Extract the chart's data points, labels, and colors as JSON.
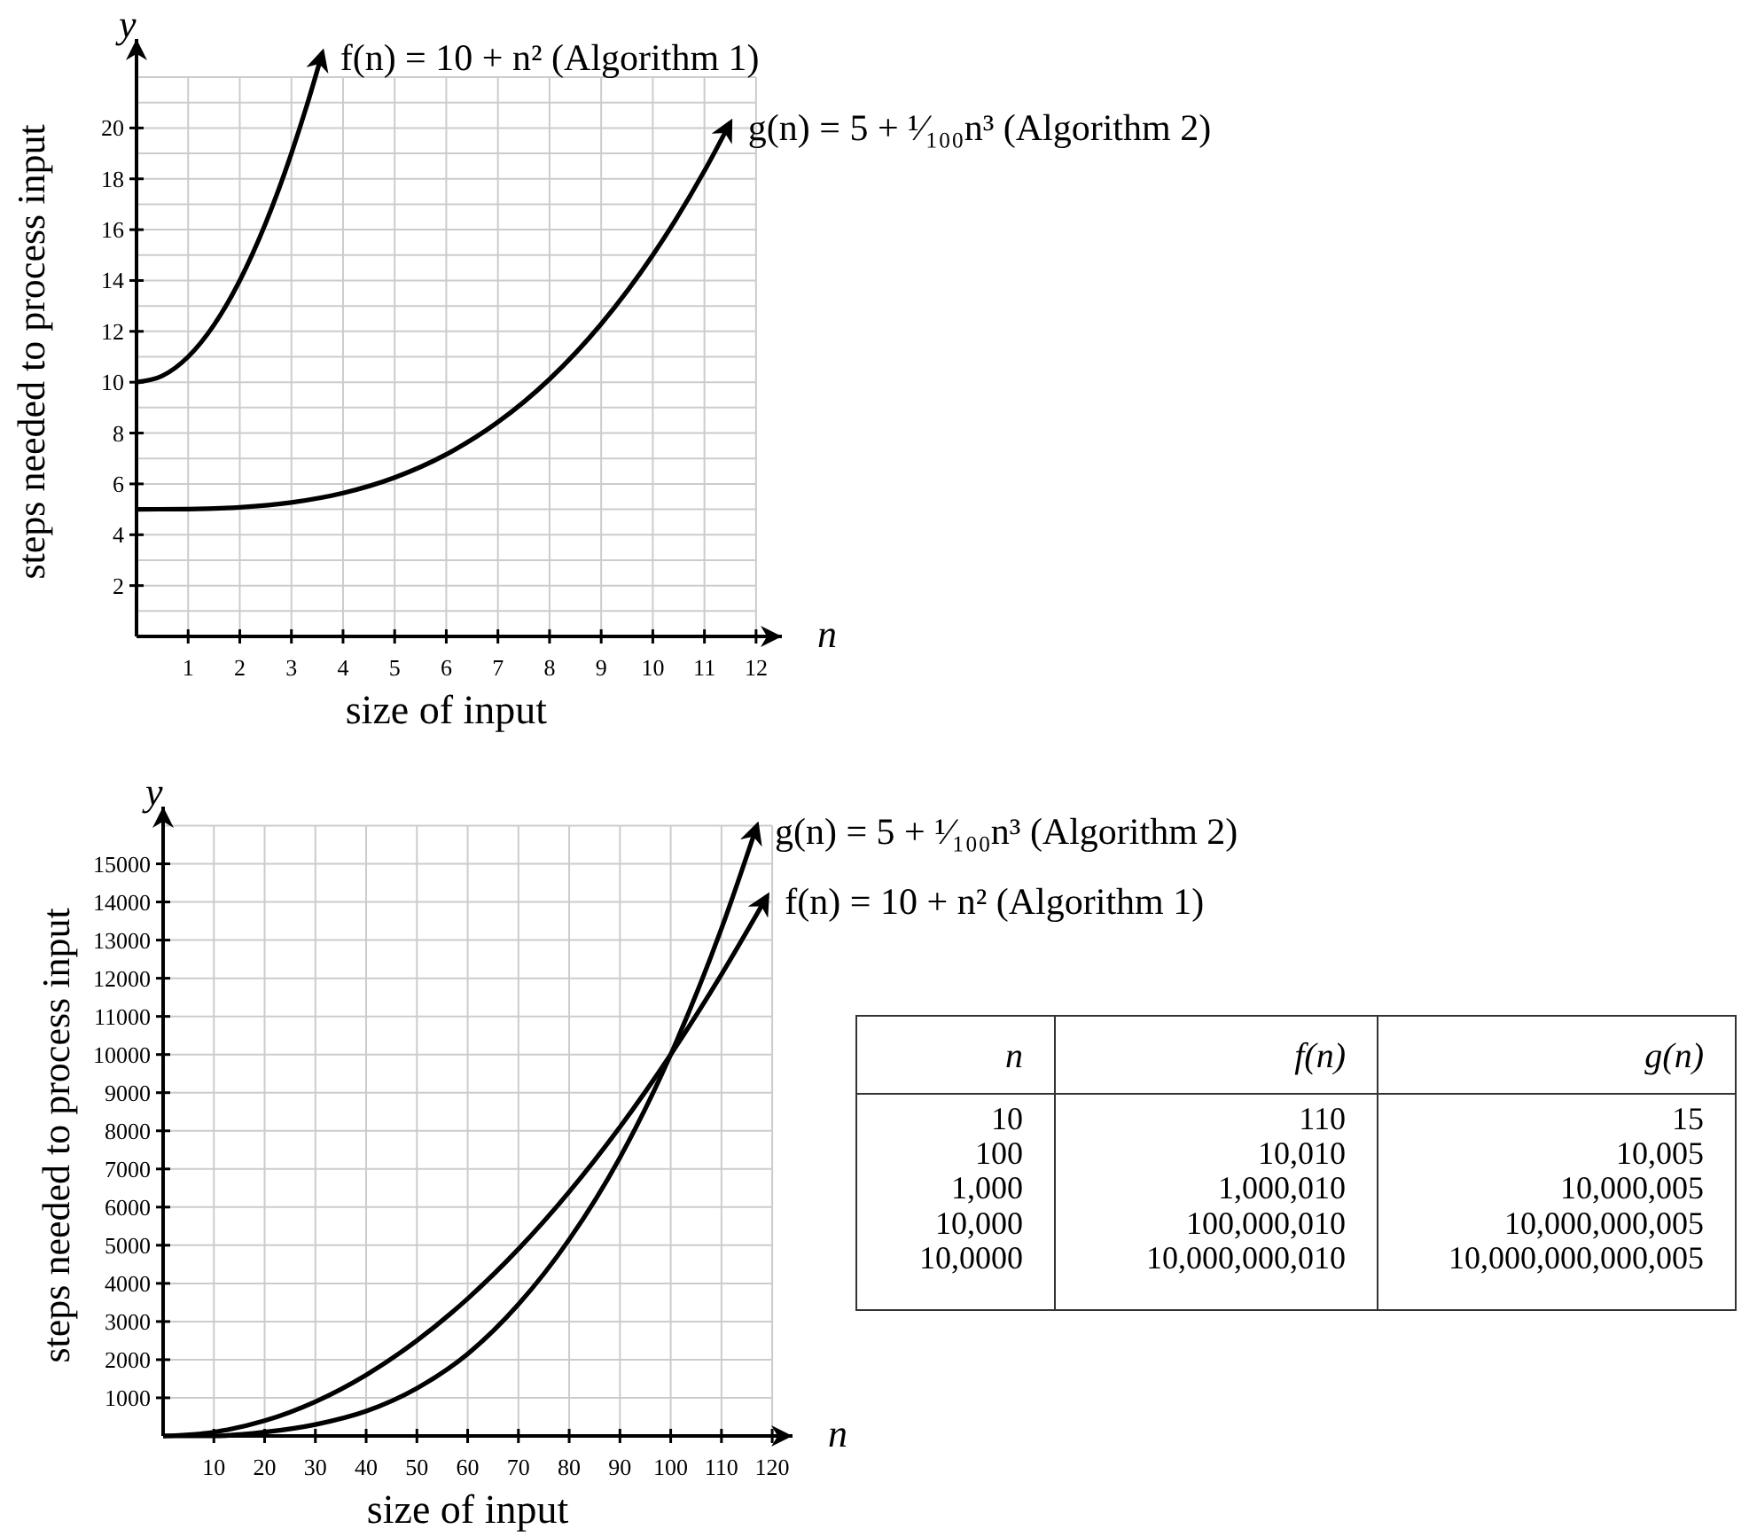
{
  "chart_data": [
    {
      "type": "line",
      "xlabel": "size of input",
      "ylabel": "steps needed to process input",
      "annotations": [
        "y",
        "n"
      ],
      "xlim": [
        0,
        12.5
      ],
      "ylim": [
        0,
        23.5
      ],
      "xticks": [
        1,
        2,
        3,
        4,
        5,
        6,
        7,
        8,
        9,
        10,
        11,
        12
      ],
      "yticks": [
        {
          "value": 1,
          "label": null
        },
        2,
        {
          "value": 3,
          "label": null
        },
        4,
        {
          "value": 5,
          "label": null
        },
        6,
        {
          "value": 7,
          "label": null
        },
        8,
        {
          "value": 9,
          "label": null
        },
        10,
        {
          "value": 11,
          "label": null
        },
        12,
        {
          "value": 13,
          "label": null
        },
        14,
        {
          "value": 15,
          "label": null
        },
        16,
        {
          "value": 17,
          "label": null
        },
        18,
        {
          "value": 19,
          "label": null
        },
        20,
        {
          "value": 21,
          "label": null
        },
        {
          "value": 22,
          "label": null
        }
      ],
      "grid": true,
      "line_style": "solid",
      "series": [
        {
          "name": "f(n) = 10 + n²  (Algorithm 1)",
          "color": "#000000",
          "x": [
            0,
            0.5,
            1,
            1.5,
            2,
            2.5,
            3,
            3.3,
            3.6
          ],
          "values": [
            10,
            10.25,
            11,
            12.25,
            14,
            16.25,
            19,
            20.89,
            22.96
          ]
        },
        {
          "name": "g(n) = 5 + ¹⁄₁₀₀n³  (Algorithm 2)",
          "color": "#000000",
          "x": [
            0,
            1,
            2,
            3,
            4,
            5,
            6,
            7,
            8,
            9,
            10,
            11,
            11.5
          ],
          "values": [
            5,
            5.01,
            5.08,
            5.27,
            5.64,
            6.25,
            7.16,
            8.43,
            10.12,
            12.29,
            15,
            18.31,
            20.21
          ]
        }
      ]
    },
    {
      "type": "line",
      "xlabel": "size of input",
      "ylabel": "steps needed to process input",
      "annotations": [
        "y",
        "n"
      ],
      "xlim": [
        0,
        124
      ],
      "ylim": [
        0,
        16500
      ],
      "xticks": [
        10,
        20,
        30,
        40,
        50,
        60,
        70,
        80,
        90,
        100,
        110,
        120
      ],
      "yticks": [
        1000,
        2000,
        3000,
        4000,
        5000,
        6000,
        7000,
        8000,
        9000,
        10000,
        11000,
        12000,
        13000,
        14000,
        15000,
        {
          "value": 16000,
          "label": null
        }
      ],
      "grid": true,
      "line_style": "solid",
      "series": [
        {
          "name": "g(n) = 5 + ¹⁄₁₀₀n³  (Algorithm 2)",
          "color": "#000000",
          "x": [
            0,
            10,
            20,
            30,
            40,
            50,
            60,
            70,
            80,
            90,
            100,
            110,
            117
          ],
          "values": [
            0,
            0,
            100,
            300,
            650,
            1250,
            2150,
            3450,
            5150,
            7300,
            10000,
            13300,
            16000
          ]
        },
        {
          "name": "f(n) = 10 + n²  (Algorithm 1)",
          "color": "#000000",
          "x": [
            0,
            10,
            20,
            30,
            40,
            50,
            60,
            70,
            80,
            90,
            100,
            110,
            119
          ],
          "values": [
            0,
            100,
            400,
            900,
            1600,
            2500,
            3600,
            4900,
            6400,
            8100,
            10000,
            12100,
            14150
          ]
        }
      ]
    },
    {
      "type": "other",
      "annotations": [
        "n",
        "f(n)",
        "g(n)",
        "10",
        "110",
        "15",
        "100",
        "10,010",
        "10,005",
        "1,000",
        "1,000,010",
        "10,000,005",
        "10,000",
        "100,000,010",
        "10,000,000,005",
        "10,0000",
        "10,000,000,010",
        "10,000,000,000,005"
      ]
    }
  ]
}
